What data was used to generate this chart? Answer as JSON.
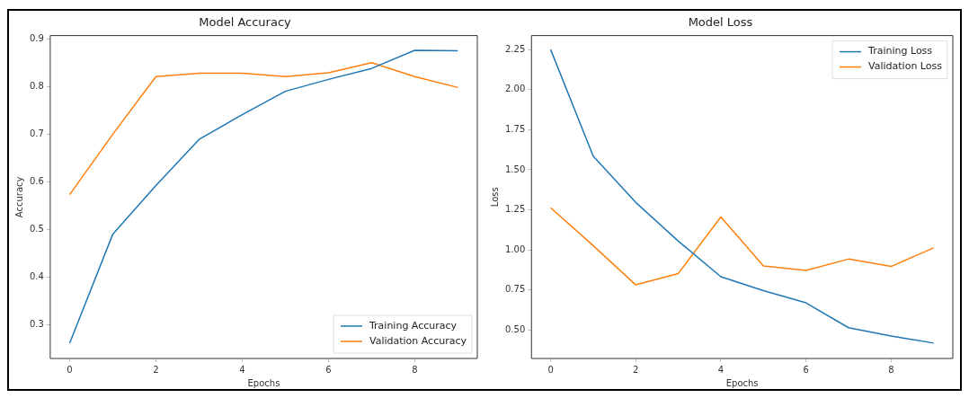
{
  "chart_data": [
    {
      "type": "line",
      "title": "Model Accuracy",
      "xlabel": "Epochs",
      "ylabel": "Accuracy",
      "x": [
        0,
        1,
        2,
        3,
        4,
        5,
        6,
        7,
        8,
        9
      ],
      "series": [
        {
          "name": "Training Accuracy",
          "color": "#1f77b4",
          "values": [
            0.261,
            0.49,
            0.592,
            0.689,
            0.741,
            0.79,
            0.815,
            0.838,
            0.876,
            0.875
          ]
        },
        {
          "name": "Validation Accuracy",
          "color": "#ff7f0e",
          "values": [
            0.573,
            0.7,
            0.821,
            0.828,
            0.828,
            0.821,
            0.829,
            0.85,
            0.821,
            0.798
          ]
        }
      ],
      "xlim": [
        -0.45,
        9.45
      ],
      "xticks": [
        0,
        2,
        4,
        6,
        8
      ],
      "ylim": [
        0.229,
        0.907
      ],
      "yticks": [
        {
          "value": 0.3,
          "label": "0.3"
        },
        {
          "value": 0.4,
          "label": "0.4"
        },
        {
          "value": 0.5,
          "label": "0.5"
        },
        {
          "value": 0.6,
          "label": "0.6"
        },
        {
          "value": 0.7,
          "label": "0.7"
        },
        {
          "value": 0.8,
          "label": "0.8"
        },
        {
          "value": 0.9,
          "label": "0.9"
        }
      ],
      "grid": false,
      "legend": "bottom right",
      "marker": "none",
      "line_style": "solid"
    },
    {
      "type": "line",
      "title": "Model Loss",
      "xlabel": "Epochs",
      "ylabel": "Loss",
      "x": [
        0,
        1,
        2,
        3,
        4,
        5,
        6,
        7,
        8,
        9
      ],
      "series": [
        {
          "name": "Training Loss",
          "color": "#1f77b4",
          "values": [
            2.25,
            1.585,
            1.296,
            1.055,
            0.833,
            0.746,
            0.67,
            0.515,
            0.463,
            0.419
          ]
        },
        {
          "name": "Validation Loss",
          "color": "#ff7f0e",
          "values": [
            1.263,
            1.027,
            0.782,
            0.853,
            1.206,
            0.9,
            0.872,
            0.943,
            0.897,
            1.013
          ]
        }
      ],
      "xlim": [
        -0.45,
        9.45
      ],
      "xticks": [
        0,
        2,
        4,
        6,
        8
      ],
      "ylim": [
        0.323,
        2.337
      ],
      "yticks": [
        {
          "value": 0.5,
          "label": "0.50"
        },
        {
          "value": 0.75,
          "label": "0.75"
        },
        {
          "value": 1.0,
          "label": "1.00"
        },
        {
          "value": 1.25,
          "label": "1.25"
        },
        {
          "value": 1.5,
          "label": "1.50"
        },
        {
          "value": 1.75,
          "label": "1.75"
        },
        {
          "value": 2.0,
          "label": "2.00"
        },
        {
          "value": 2.25,
          "label": "2.25"
        }
      ],
      "grid": false,
      "legend": "top right",
      "marker": "none",
      "line_style": "solid"
    }
  ]
}
